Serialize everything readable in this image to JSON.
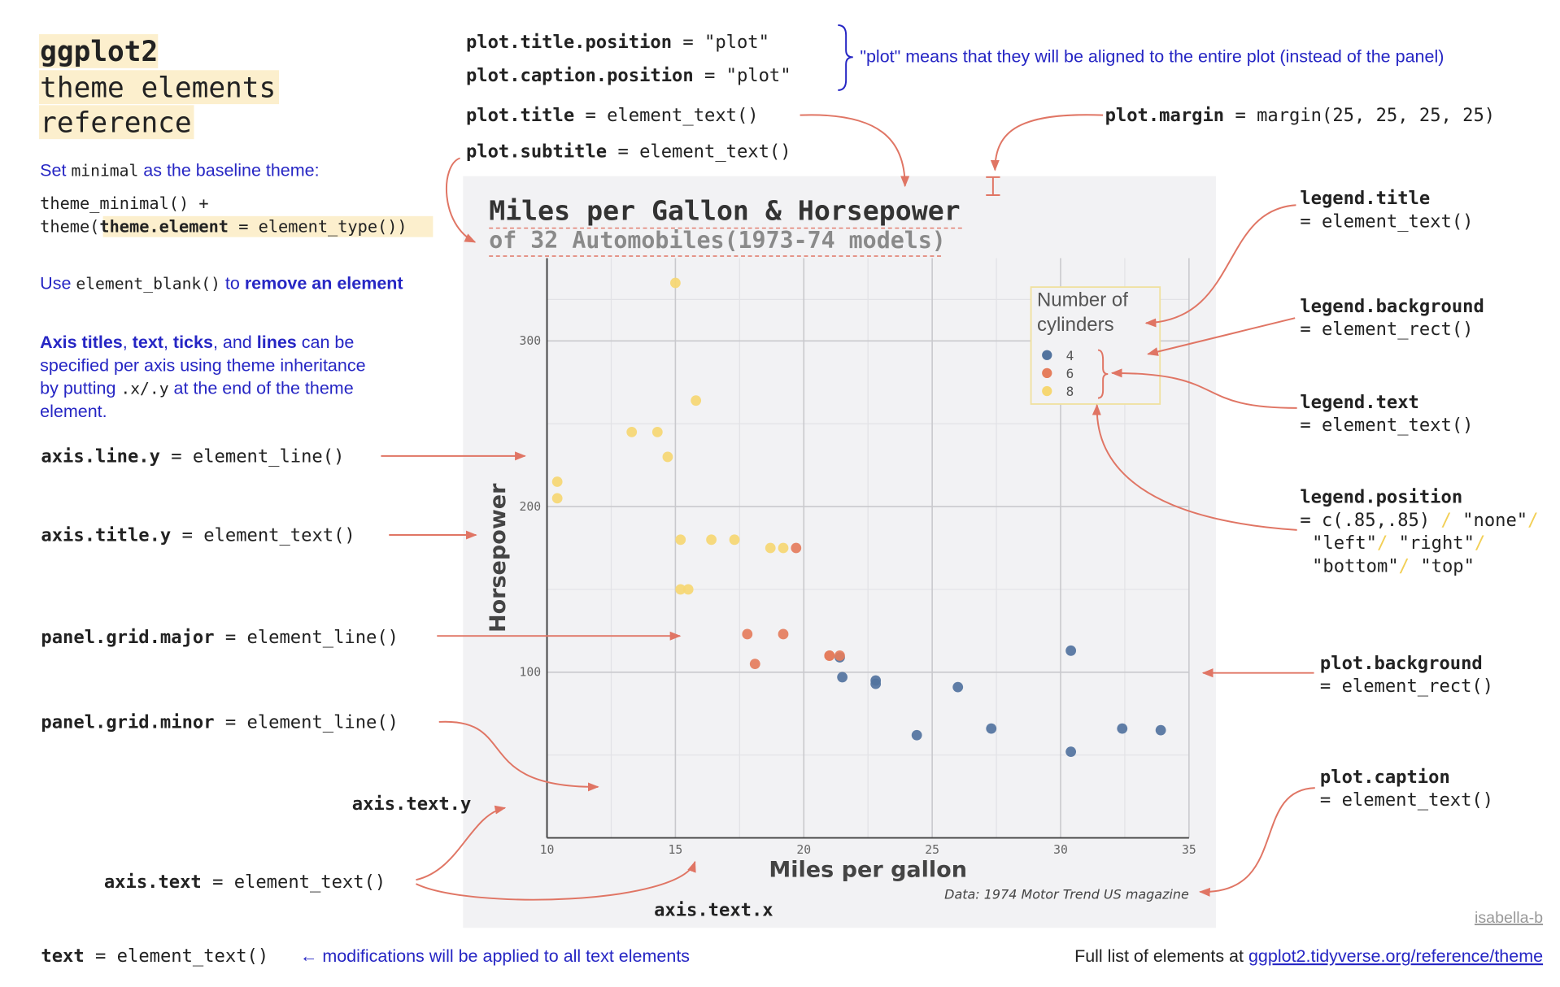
{
  "header": {
    "title_lines": [
      "ggplot2",
      "theme elements",
      "reference"
    ]
  },
  "notes": {
    "baseline": [
      "Set",
      "minimal",
      "as the baseline theme:"
    ],
    "code": [
      "theme_minimal() +",
      "theme(",
      "theme.element",
      "= element_type())"
    ],
    "blank": [
      "Use",
      "element_blank()",
      "to",
      "remove an element"
    ],
    "axis_note": [
      [
        "Axis titles",
        ",",
        "text",
        ",",
        "ticks",
        ", and",
        "lines",
        "can be"
      ],
      [
        "specified per axis using theme inheritance"
      ],
      [
        "by putting",
        ".x/.y",
        "at the end of the theme"
      ],
      [
        "element."
      ]
    ]
  },
  "elements": [
    {
      "key": "plot.title.position",
      "value": "= \"plot\""
    },
    {
      "key": "plot.caption.position",
      "value": "= \"plot\""
    },
    {
      "key": "plot.title",
      "value": "= element_text()"
    },
    {
      "key": "plot.subtitle",
      "value": "= element_text()"
    },
    {
      "key": "plot.margin",
      "value": "= margin(25, 25, 25, 25)"
    },
    {
      "key": "legend.title",
      "value": "= element_text()"
    },
    {
      "key": "legend.background",
      "value": "= element_rect()"
    },
    {
      "key": "legend.text",
      "value": "= element_text()"
    },
    {
      "key": "legend.position",
      "value": [
        "= c(.85,.85)",
        "/",
        "\"none\"",
        "/",
        "\"left\"",
        "/",
        "\"right\"",
        "/",
        "\"bottom\"",
        "/",
        "\"top\""
      ]
    },
    {
      "key": "plot.background",
      "value": "= element_rect()"
    },
    {
      "key": "plot.caption",
      "value": "= element_text()"
    },
    {
      "key": "axis.line.y",
      "value": "= element_line()"
    },
    {
      "key": "axis.title.y",
      "value": "= element_text()"
    },
    {
      "key": "panel.grid.major",
      "value": "= element_line()"
    },
    {
      "key": "panel.grid.minor",
      "value": "= element_line()"
    },
    {
      "key": "axis.text.y"
    },
    {
      "key": "axis.text",
      "value": "= element_text()"
    },
    {
      "key": "axis.text.x"
    },
    {
      "key": "text",
      "value": "= element_text()"
    }
  ],
  "position_note": "\"plot\" means that they will be aligned to the entire plot (instead of the panel)",
  "text_note": "← modifications will be applied to all text elements",
  "footer": {
    "full_list": "Full list of elements at",
    "link": "ggplot2.tidyverse.org/reference/theme",
    "author": "isabella-b"
  },
  "chart_data": {
    "type": "scatter",
    "title": "Miles per Gallon & Horsepower",
    "subtitle": "of 32 Automobiles(1973-74 models)",
    "caption": "Data: 1974 Motor Trend US magazine",
    "x_label": "Miles per gallon",
    "y_label": "Horsepower",
    "legend_title": "Number of cylinders",
    "legend_position": "top-right",
    "grid": true,
    "xlim": [
      10,
      35
    ],
    "xticks": [
      10,
      15,
      20,
      25,
      30,
      35
    ],
    "ylim": [
      0,
      350
    ],
    "yticks": [
      100,
      200,
      300
    ],
    "series": [
      {
        "name": "4",
        "color": "#52739e",
        "x": [
          22.8,
          24.4,
          22.8,
          32.4,
          30.4,
          33.9,
          21.5,
          27.3,
          26.0,
          30.4,
          21.4
        ],
        "y": [
          93,
          62,
          95,
          66,
          52,
          65,
          97,
          66,
          91,
          113,
          109
        ]
      },
      {
        "name": "6",
        "color": "#e57d5c",
        "x": [
          21.0,
          21.0,
          21.4,
          18.1,
          19.2,
          17.8,
          19.7
        ],
        "y": [
          110,
          110,
          110,
          105,
          123,
          123,
          175
        ]
      },
      {
        "name": "8",
        "color": "#f6d772",
        "x": [
          18.7,
          14.3,
          16.4,
          17.3,
          15.2,
          10.4,
          10.4,
          14.7,
          15.5,
          15.2,
          13.3,
          19.2,
          15.8,
          15.0
        ],
        "y": [
          175,
          245,
          180,
          180,
          180,
          205,
          215,
          230,
          150,
          150,
          245,
          175,
          264,
          335
        ]
      }
    ]
  }
}
